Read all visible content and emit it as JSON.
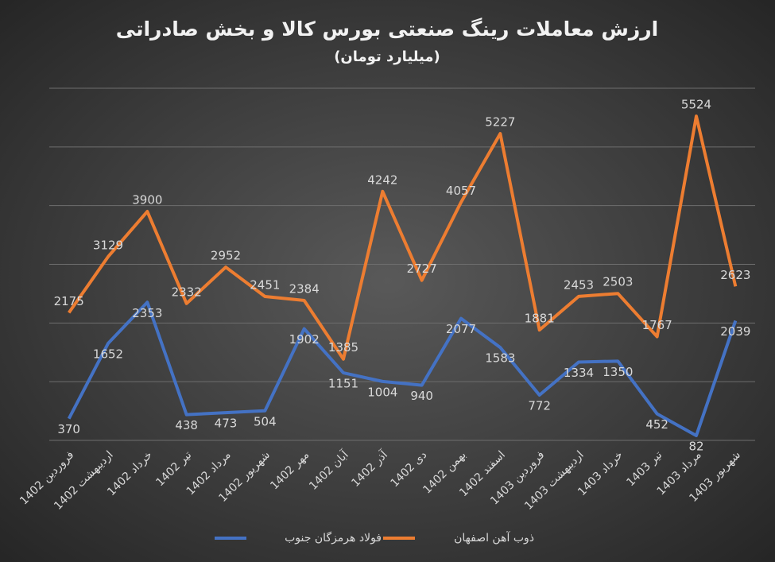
{
  "chart_data": {
    "type": "line",
    "title": "ارزش معاملات رینگ صنعتی بورس کالا و بخش صادراتی",
    "subtitle": "(میلیارد تومان)",
    "categories": [
      "فروردین 1402",
      "اردیبهشت 1402",
      "خرداد 1402",
      "تیر 1402",
      "مرداد 1402",
      "شهریور 1402",
      "مهر 1402",
      "آبان 1402",
      "آذر 1402",
      "دی 1402",
      "بهمن 1402",
      "اسفند 1402",
      "فروردین 1403",
      "اردیبهشت 1403",
      "خرداد 1403",
      "تیر 1403",
      "مرداد 1403",
      "شهریور 1403"
    ],
    "series": [
      {
        "name": "فولاد هرمزگان جنوب",
        "color": "#4472c4",
        "values": [
          370,
          1652,
          2353,
          438,
          473,
          504,
          1902,
          1151,
          1004,
          940,
          2077,
          1583,
          772,
          1334,
          1350,
          452,
          82,
          2039
        ]
      },
      {
        "name": "ذوب آهن اصفهان",
        "color": "#ed7d31",
        "values": [
          2175,
          3129,
          3900,
          2332,
          2952,
          2451,
          2384,
          1385,
          4242,
          2727,
          4057,
          5227,
          1881,
          2453,
          2503,
          1767,
          5524,
          2623
        ]
      }
    ],
    "ylim": [
      0,
      6000
    ],
    "yticks": [
      0,
      1000,
      2000,
      3000,
      4000,
      5000,
      6000
    ],
    "grid": true
  }
}
